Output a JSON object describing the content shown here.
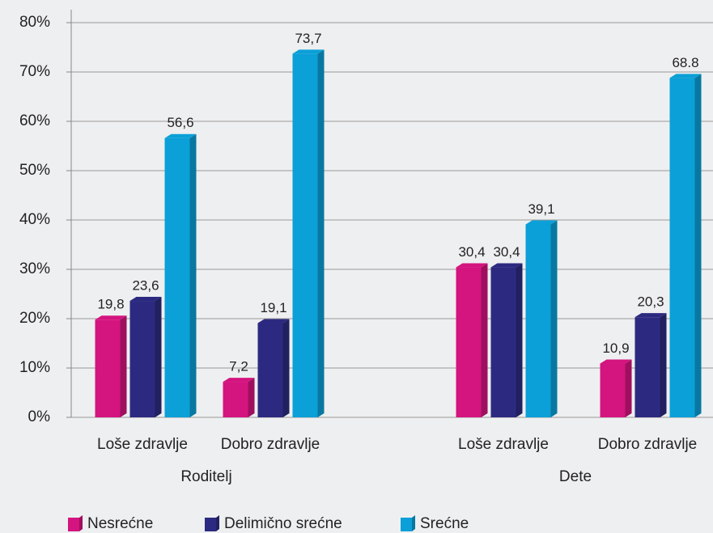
{
  "chart_data": {
    "type": "bar3d",
    "categories": [
      "Loše zdravlje",
      "Dobro zdravlje",
      "Loše zdravlje",
      "Dobro zdravlje"
    ],
    "group_labels": [
      "Roditelj",
      "Dete"
    ],
    "series": [
      {
        "name": "Nesrećne",
        "color": "#d4147f",
        "values": [
          19.8,
          7.2,
          30.4,
          10.9
        ],
        "value_labels": [
          "19,8",
          "7,2",
          "30,4",
          "10,9"
        ]
      },
      {
        "name": "Delimično srećne",
        "color": "#2c2a80",
        "values": [
          23.6,
          19.1,
          30.4,
          20.3
        ],
        "value_labels": [
          "23,6",
          "19,1",
          "30,4",
          "20,3"
        ]
      },
      {
        "name": "Srećne",
        "color": "#0ba0d7",
        "values": [
          56.6,
          73.7,
          39.1,
          68.8
        ],
        "value_labels": [
          "56,6",
          "73,7",
          "39,1",
          "68.8"
        ]
      }
    ],
    "ylim": [
      0,
      80
    ],
    "yticks": [
      {
        "value": 0,
        "label": "0%"
      },
      {
        "value": 10,
        "label": "10%"
      },
      {
        "value": 20,
        "label": "20%"
      },
      {
        "value": 30,
        "label": "30%"
      },
      {
        "value": 40,
        "label": "40%"
      },
      {
        "value": 50,
        "label": "50%"
      },
      {
        "value": 60,
        "label": "60%"
      },
      {
        "value": 70,
        "label": "70%"
      },
      {
        "value": 80,
        "label": "80%"
      }
    ],
    "grid": true,
    "legend": "bottom"
  }
}
